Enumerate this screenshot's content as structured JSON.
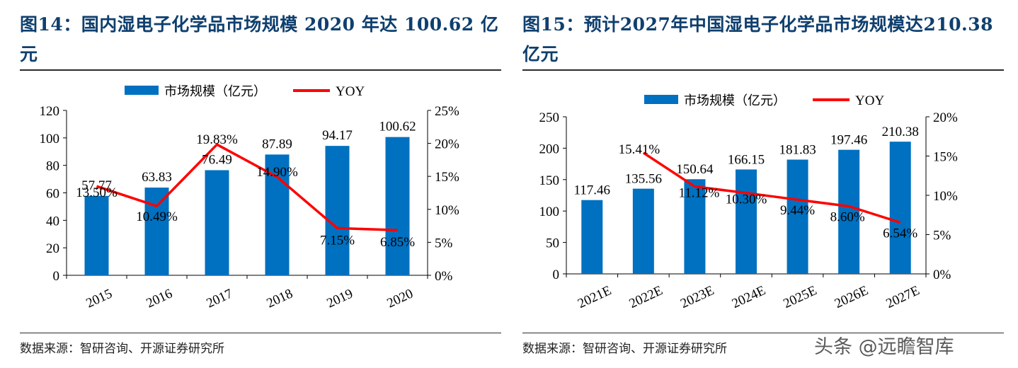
{
  "figures": [
    {
      "title": "图14：国内湿电子化学品市场规模 2020 年达 100.62 亿元",
      "source": "数据来源：智研咨询、开源证券研究所",
      "chart_data": {
        "type": "bar+line",
        "categories": [
          "2015",
          "2016",
          "2017",
          "2018",
          "2019",
          "2020"
        ],
        "series": [
          {
            "name": "市场规模（亿元）",
            "type": "bar",
            "axis": "left",
            "color": "#0070c0",
            "values": [
              57.77,
              63.83,
              76.49,
              87.89,
              94.17,
              100.62
            ],
            "labels": [
              "57.77",
              "63.83",
              "76.49",
              "87.89",
              "94.17",
              "100.62"
            ]
          },
          {
            "name": "YOY",
            "type": "line",
            "axis": "right",
            "color": "#ff0000",
            "values": [
              13.5,
              10.49,
              19.83,
              14.9,
              7.15,
              6.85
            ],
            "labels": [
              "13.50%",
              "10.49%",
              "19.83%",
              "14.90%",
              "7.15%",
              "6.85%"
            ]
          }
        ],
        "y_left": {
          "min": 0,
          "max": 120,
          "ticks": [
            "0",
            "20",
            "40",
            "60",
            "80",
            "100",
            "120"
          ]
        },
        "y_right": {
          "min": 0,
          "max": 25,
          "ticks": [
            "0%",
            "5%",
            "10%",
            "15%",
            "20%",
            "25%"
          ]
        },
        "legend": "top-center"
      }
    },
    {
      "title": "图15：预计2027年中国湿电子化学品市场规模达210.38亿元",
      "source": "数据来源：智研咨询、开源证券研究所",
      "chart_data": {
        "type": "bar+line",
        "categories": [
          "2021E",
          "2022E",
          "2023E",
          "2024E",
          "2025E",
          "2026E",
          "2027E"
        ],
        "series": [
          {
            "name": "市场规模（亿元）",
            "type": "bar",
            "axis": "left",
            "color": "#0070c0",
            "values": [
              117.46,
              135.56,
              150.64,
              166.15,
              181.83,
              197.46,
              210.38
            ],
            "labels": [
              "117.46",
              "135.56",
              "150.64",
              "166.15",
              "181.83",
              "197.46",
              "210.38"
            ]
          },
          {
            "name": "YOY",
            "type": "line",
            "axis": "right",
            "color": "#ff0000",
            "values": [
              null,
              15.41,
              11.12,
              10.3,
              9.44,
              8.6,
              6.54
            ],
            "labels": [
              "",
              "15.41%",
              "11.12%",
              "10.30%",
              "9.44%",
              "8.60%",
              "6.54%"
            ]
          }
        ],
        "y_left": {
          "min": 0,
          "max": 250,
          "ticks": [
            "0",
            "50",
            "100",
            "150",
            "200",
            "250"
          ]
        },
        "y_right": {
          "min": 0,
          "max": 20,
          "ticks": [
            "0%",
            "5%",
            "10%",
            "15%",
            "20%"
          ]
        },
        "legend": "top-center"
      }
    }
  ],
  "watermark": "头条 @远瞻智库"
}
